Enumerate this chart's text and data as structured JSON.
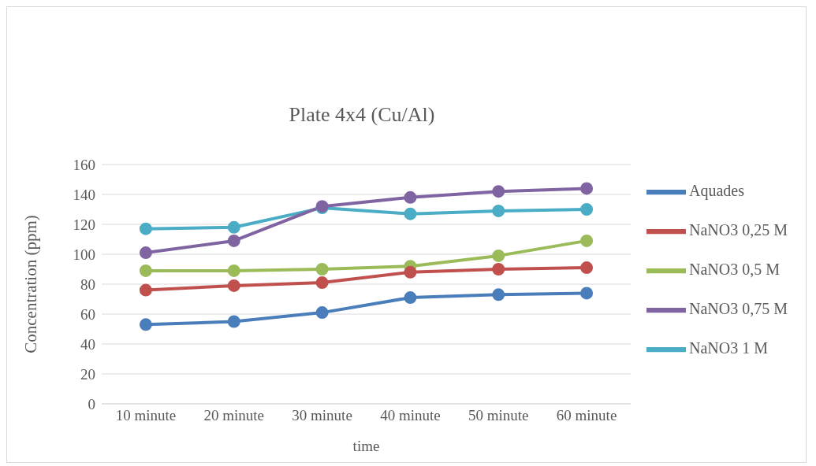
{
  "chart_data": {
    "type": "line",
    "title": "Plate 4x4 (Cu/Al)",
    "xlabel": "time",
    "ylabel": "Concentration (ppm)",
    "categories": [
      "10 minute",
      "20 minute",
      "30 minute",
      "40 minute",
      "50 minute",
      "60 minute"
    ],
    "series": [
      {
        "name": "Aquades",
        "color": "#4a7ebb",
        "values": [
          53,
          55,
          61,
          71,
          73,
          74
        ]
      },
      {
        "name": "NaNO3 0,25 M",
        "color": "#c0504d",
        "values": [
          76,
          79,
          81,
          88,
          90,
          91
        ]
      },
      {
        "name": "NaNO3 0,5 M",
        "color": "#9bbb59",
        "values": [
          89,
          89,
          90,
          92,
          99,
          109
        ]
      },
      {
        "name": "NaNO3 0,75 M",
        "color": "#8064a2",
        "values": [
          101,
          109,
          132,
          138,
          142,
          144
        ]
      },
      {
        "name": "NaNO3 1 M",
        "color": "#4bacc6",
        "values": [
          117,
          118,
          131,
          127,
          129,
          130
        ]
      }
    ],
    "ylim": [
      0,
      160
    ],
    "yticks": [
      0,
      20,
      40,
      60,
      80,
      100,
      120,
      140,
      160
    ],
    "grid": "y",
    "legend": "right",
    "marker": "circle",
    "line_style": "solid"
  }
}
